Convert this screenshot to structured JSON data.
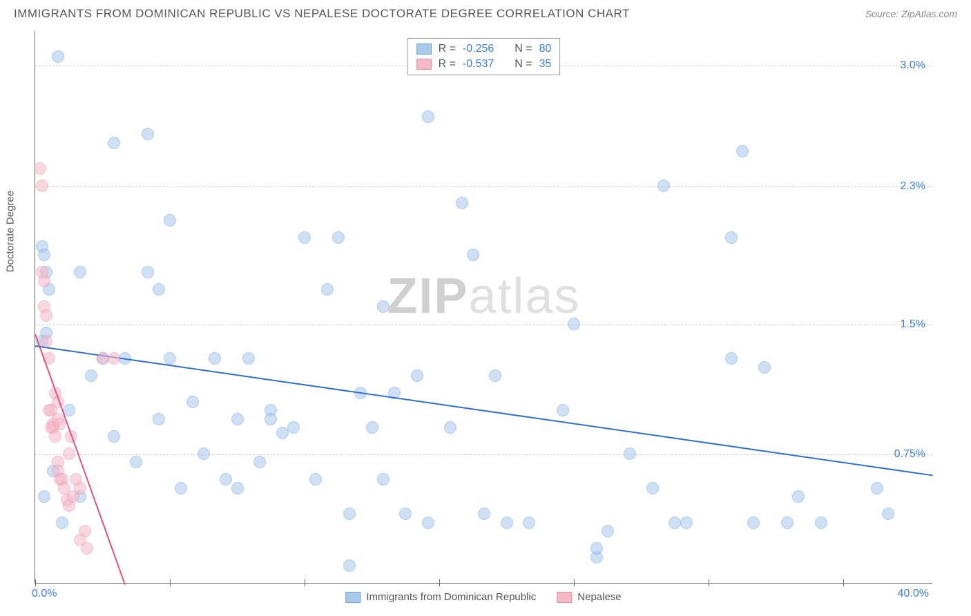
{
  "title": "IMMIGRANTS FROM DOMINICAN REPUBLIC VS NEPALESE DOCTORATE DEGREE CORRELATION CHART",
  "source": "Source: ZipAtlas.com",
  "watermark_zip": "ZIP",
  "watermark_atlas": "atlas",
  "chart": {
    "type": "scatter",
    "ylabel": "Doctorate Degree",
    "xlim": [
      0,
      40
    ],
    "ylim": [
      0,
      3.2
    ],
    "xtick_labels": {
      "min": "0.0%",
      "max": "40.0%"
    },
    "xtick_positions": [
      0,
      6,
      12,
      18,
      24,
      30,
      36
    ],
    "ytick_labels": [
      "0.75%",
      "1.5%",
      "2.3%",
      "3.0%"
    ],
    "ytick_values": [
      0.75,
      1.5,
      2.3,
      3.0
    ],
    "background_color": "#ffffff",
    "grid_color": "#cccccc",
    "axis_color": "#666666",
    "label_color": "#3b7dd8",
    "marker_radius": 9,
    "series": [
      {
        "name": "Immigrants from Dominican Republic",
        "color_fill": "#a8c8ec",
        "color_stroke": "#6ba3e0",
        "fill_opacity": 0.55,
        "R": "-0.256",
        "N": "80",
        "trend": {
          "x1": 0,
          "y1": 1.38,
          "x2": 40,
          "y2": 0.63,
          "color": "#2f6fd0",
          "width": 2
        },
        "points": [
          [
            0.3,
            1.95
          ],
          [
            0.4,
            1.9
          ],
          [
            0.5,
            1.8
          ],
          [
            0.5,
            1.45
          ],
          [
            0.6,
            1.7
          ],
          [
            0.3,
            1.4
          ],
          [
            0.4,
            0.5
          ],
          [
            1.0,
            3.05
          ],
          [
            3.5,
            2.55
          ],
          [
            5.0,
            2.6
          ],
          [
            2.0,
            1.8
          ],
          [
            3.0,
            1.3
          ],
          [
            4.0,
            1.3
          ],
          [
            5.0,
            1.8
          ],
          [
            6.0,
            2.1
          ],
          [
            5.5,
            1.7
          ],
          [
            6.0,
            1.3
          ],
          [
            7.0,
            1.05
          ],
          [
            8.0,
            1.3
          ],
          [
            9.0,
            0.95
          ],
          [
            9.5,
            1.3
          ],
          [
            10.0,
            0.7
          ],
          [
            10.5,
            1.0
          ],
          [
            10.5,
            0.95
          ],
          [
            11.0,
            0.87
          ],
          [
            11.5,
            0.9
          ],
          [
            12.0,
            2.0
          ],
          [
            12.5,
            0.6
          ],
          [
            13.0,
            1.7
          ],
          [
            13.5,
            2.0
          ],
          [
            14.0,
            0.4
          ],
          [
            14.5,
            1.1
          ],
          [
            15.0,
            0.9
          ],
          [
            15.5,
            0.6
          ],
          [
            14.0,
            0.1
          ],
          [
            15.5,
            1.6
          ],
          [
            16.0,
            1.1
          ],
          [
            16.5,
            0.4
          ],
          [
            17.0,
            1.2
          ],
          [
            17.5,
            0.35
          ],
          [
            17.5,
            2.7
          ],
          [
            18.5,
            0.9
          ],
          [
            19.0,
            2.2
          ],
          [
            19.5,
            1.9
          ],
          [
            20.0,
            0.4
          ],
          [
            20.5,
            1.2
          ],
          [
            21.0,
            0.35
          ],
          [
            22.0,
            0.35
          ],
          [
            7.5,
            0.75
          ],
          [
            8.5,
            0.6
          ],
          [
            9.0,
            0.55
          ],
          [
            23.5,
            1.0
          ],
          [
            24.0,
            1.5
          ],
          [
            25.0,
            0.15
          ],
          [
            25.0,
            0.2
          ],
          [
            25.5,
            0.3
          ],
          [
            26.5,
            0.75
          ],
          [
            27.5,
            0.55
          ],
          [
            28.0,
            2.3
          ],
          [
            28.5,
            0.35
          ],
          [
            29.0,
            0.35
          ],
          [
            31.0,
            1.3
          ],
          [
            31.0,
            2.0
          ],
          [
            31.5,
            2.5
          ],
          [
            32.5,
            1.25
          ],
          [
            33.5,
            0.35
          ],
          [
            34.0,
            0.5
          ],
          [
            35.0,
            0.35
          ],
          [
            37.5,
            0.55
          ],
          [
            38.0,
            0.4
          ],
          [
            32.0,
            0.35
          ],
          [
            4.5,
            0.7
          ],
          [
            5.5,
            0.95
          ],
          [
            6.5,
            0.55
          ],
          [
            2.5,
            1.2
          ],
          [
            3.5,
            0.85
          ],
          [
            1.5,
            1.0
          ],
          [
            0.8,
            0.65
          ],
          [
            1.2,
            0.35
          ],
          [
            2.0,
            0.5
          ]
        ]
      },
      {
        "name": "Nepalese",
        "color_fill": "#f5b8c8",
        "color_stroke": "#ec8fa9",
        "fill_opacity": 0.55,
        "R": "-0.537",
        "N": "35",
        "trend": {
          "x1": 0,
          "y1": 1.45,
          "x2": 4.0,
          "y2": 0.0,
          "color": "#e05080",
          "width": 2
        },
        "points": [
          [
            0.2,
            2.4
          ],
          [
            0.3,
            2.3
          ],
          [
            0.3,
            1.8
          ],
          [
            0.4,
            1.75
          ],
          [
            0.4,
            1.6
          ],
          [
            0.5,
            1.55
          ],
          [
            0.5,
            1.4
          ],
          [
            0.6,
            1.3
          ],
          [
            0.6,
            1.0
          ],
          [
            0.7,
            1.0
          ],
          [
            0.7,
            0.9
          ],
          [
            0.8,
            0.92
          ],
          [
            0.8,
            0.9
          ],
          [
            0.9,
            0.85
          ],
          [
            1.0,
            0.7
          ],
          [
            1.0,
            0.65
          ],
          [
            1.1,
            0.6
          ],
          [
            1.2,
            0.6
          ],
          [
            1.3,
            0.55
          ],
          [
            1.4,
            0.48
          ],
          [
            1.5,
            0.45
          ],
          [
            1.0,
            0.95
          ],
          [
            1.1,
            0.92
          ],
          [
            1.8,
            0.6
          ],
          [
            2.0,
            0.55
          ],
          [
            2.2,
            0.3
          ],
          [
            2.3,
            0.2
          ],
          [
            1.6,
            0.85
          ],
          [
            0.9,
            1.1
          ],
          [
            1.0,
            1.05
          ],
          [
            1.5,
            0.75
          ],
          [
            1.7,
            0.5
          ],
          [
            3.0,
            1.3
          ],
          [
            3.5,
            1.3
          ],
          [
            2.0,
            0.25
          ]
        ]
      }
    ],
    "legend_top": [
      {
        "swatch_fill": "#a8c8ec",
        "swatch_stroke": "#6ba3e0",
        "R_label": "R =",
        "R_val": "-0.256",
        "N_label": "N =",
        "N_val": "80"
      },
      {
        "swatch_fill": "#f5b8c8",
        "swatch_stroke": "#ec8fa9",
        "R_label": "R =",
        "R_val": "-0.537",
        "N_label": "N =",
        "N_val": "35"
      }
    ],
    "legend_bottom": [
      {
        "swatch_fill": "#a8c8ec",
        "swatch_stroke": "#6ba3e0",
        "label": "Immigrants from Dominican Republic"
      },
      {
        "swatch_fill": "#f5b8c8",
        "swatch_stroke": "#ec8fa9",
        "label": "Nepalese"
      }
    ]
  }
}
